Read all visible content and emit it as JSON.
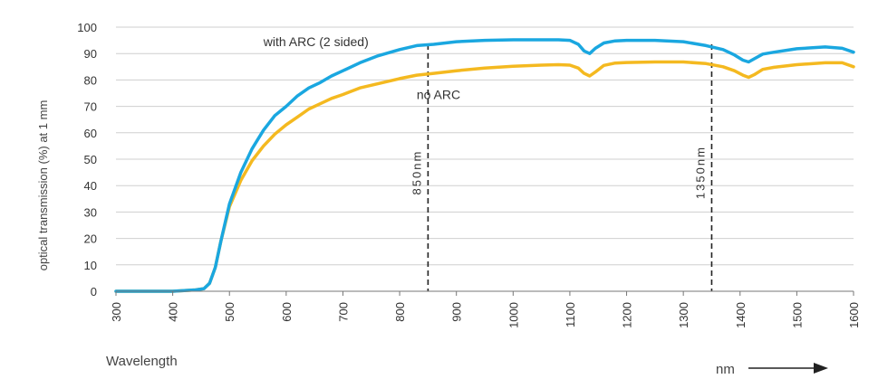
{
  "chart_data": {
    "type": "line",
    "title": "",
    "ylabel": "optical transmission (%) at 1 mm",
    "xlabel": "Wavelength",
    "xunit_label": "nm",
    "xlim": [
      300,
      1600
    ],
    "ylim": [
      0,
      100
    ],
    "xticks": [
      300,
      400,
      500,
      600,
      700,
      800,
      900,
      1000,
      1100,
      1200,
      1300,
      1400,
      1500,
      1600
    ],
    "yticks": [
      0,
      10,
      20,
      30,
      40,
      50,
      60,
      70,
      80,
      90,
      100
    ],
    "grid": "horizontal",
    "series": [
      {
        "name": "with ARC (2 sided)",
        "color": "#1aa7e0",
        "x": [
          300,
          400,
          440,
          455,
          465,
          475,
          485,
          500,
          520,
          540,
          560,
          580,
          600,
          620,
          640,
          660,
          680,
          700,
          730,
          760,
          800,
          830,
          860,
          900,
          950,
          1000,
          1050,
          1080,
          1100,
          1115,
          1125,
          1135,
          1145,
          1160,
          1180,
          1200,
          1250,
          1300,
          1340,
          1370,
          1390,
          1405,
          1415,
          1425,
          1440,
          1460,
          1500,
          1550,
          1580,
          1600
        ],
        "y": [
          0,
          0,
          0.5,
          1,
          3,
          9,
          19,
          33,
          45,
          54,
          61,
          66.5,
          70,
          74,
          77,
          79,
          81.5,
          83.5,
          86.5,
          89,
          91.5,
          93,
          93.5,
          94.5,
          95,
          95.2,
          95.2,
          95.2,
          95,
          93.5,
          91,
          90,
          92,
          94,
          94.8,
          95,
          95,
          94.5,
          93,
          91.5,
          89.5,
          87.5,
          86.8,
          88,
          89.8,
          90.5,
          91.8,
          92.5,
          92,
          90.5
        ]
      },
      {
        "name": "no ARC",
        "color": "#f4b920",
        "x": [
          300,
          400,
          440,
          455,
          465,
          475,
          485,
          500,
          520,
          540,
          560,
          580,
          600,
          620,
          640,
          660,
          680,
          700,
          730,
          760,
          800,
          830,
          860,
          900,
          950,
          1000,
          1050,
          1080,
          1100,
          1115,
          1125,
          1135,
          1145,
          1160,
          1180,
          1200,
          1250,
          1300,
          1340,
          1370,
          1390,
          1405,
          1415,
          1425,
          1440,
          1460,
          1500,
          1550,
          1580,
          1600
        ],
        "y": [
          0,
          0,
          0.5,
          1,
          3,
          9,
          19,
          32,
          42,
          49.5,
          55,
          59.5,
          63,
          66,
          69,
          71,
          73,
          74.5,
          77,
          78.5,
          80.5,
          81.8,
          82.5,
          83.5,
          84.5,
          85.2,
          85.6,
          85.8,
          85.6,
          84.5,
          82.5,
          81.5,
          83,
          85.5,
          86.4,
          86.6,
          86.8,
          86.8,
          86.2,
          85,
          83.5,
          81.8,
          81,
          82,
          84,
          84.8,
          85.8,
          86.5,
          86.5,
          85
        ]
      }
    ],
    "annotations": [
      {
        "text": "with ARC (2 sided)",
        "x": 560,
        "y": 94.5
      },
      {
        "text": "no ARC",
        "x": 830,
        "y": 74.5
      }
    ],
    "markers": [
      {
        "x": 850,
        "label": "850nm"
      },
      {
        "x": 1350,
        "label": "1350nm"
      }
    ]
  }
}
